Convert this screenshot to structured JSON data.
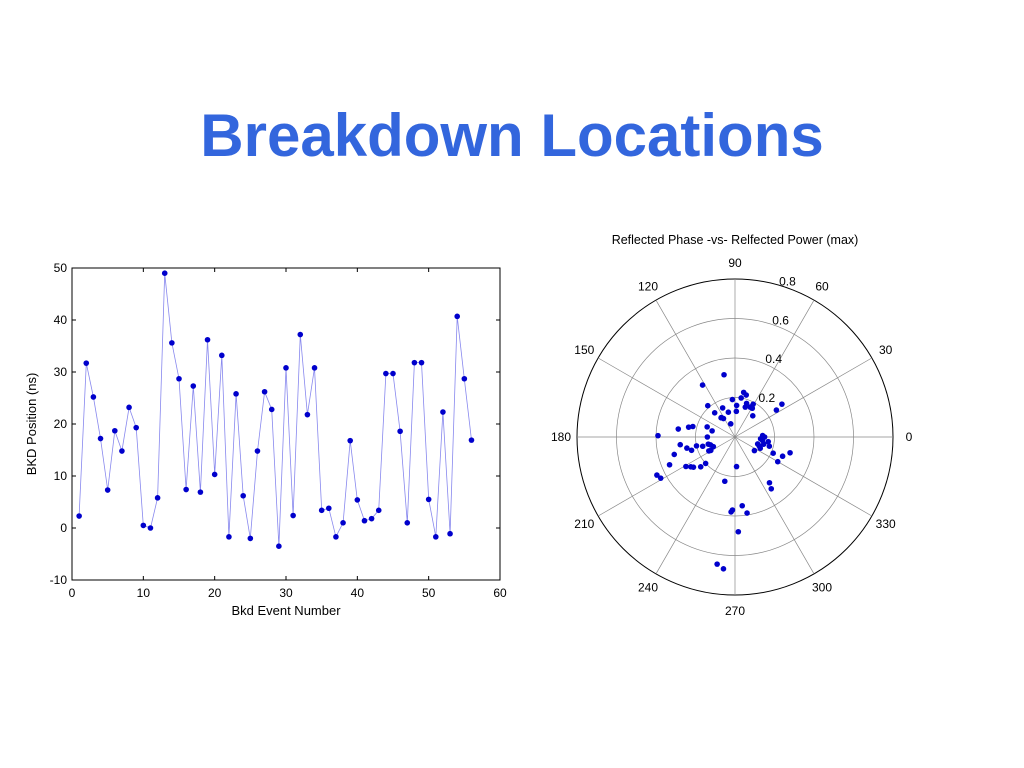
{
  "slide": {
    "title": "Breakdown Locations"
  },
  "colors": {
    "title": "#3366dd",
    "marker": "#0000cc",
    "line": "#8888ee",
    "grid": "#888888"
  },
  "chart_data": [
    {
      "type": "line",
      "title": "",
      "xlabel": "Bkd Event Number",
      "ylabel": "BKD Position (ns)",
      "xlim": [
        0,
        60
      ],
      "ylim": [
        -10,
        50
      ],
      "xticks": [
        0,
        10,
        20,
        30,
        40,
        50,
        60
      ],
      "yticks": [
        -10,
        0,
        10,
        20,
        30,
        40,
        50
      ],
      "grid": false,
      "series": [
        {
          "x": [
            1,
            2,
            3,
            4,
            5,
            6,
            7,
            8,
            9,
            10,
            11,
            12,
            13,
            14,
            15,
            16,
            17,
            18,
            19,
            20,
            21,
            22,
            23,
            24,
            25,
            26,
            27,
            28,
            29,
            30,
            31,
            32,
            33,
            34,
            35,
            36,
            37,
            38,
            39,
            40,
            41,
            42,
            43,
            44,
            45,
            46,
            47,
            48,
            49,
            50,
            51,
            52,
            53,
            54,
            55,
            56
          ],
          "values": [
            2.3,
            31.7,
            25.2,
            17.2,
            7.3,
            18.7,
            14.8,
            23.2,
            19.3,
            0.5,
            0,
            5.8,
            49,
            35.6,
            28.7,
            7.4,
            27.3,
            6.9,
            36.2,
            10.3,
            33.2,
            -1.7,
            25.8,
            6.2,
            -2,
            14.8,
            26.2,
            22.8,
            -3.5,
            30.8,
            2.4,
            37.2,
            21.8,
            30.8,
            3.4,
            3.8,
            -1.7,
            1,
            16.8,
            5.4,
            1.4,
            1.8,
            3.4,
            29.7,
            29.7,
            18.6,
            1,
            31.8,
            31.8,
            5.5,
            -1.7,
            22.3,
            -1.1,
            40.7,
            28.7,
            16.9
          ]
        }
      ]
    },
    {
      "type": "scatter",
      "subtype": "polar",
      "title": "Reflected Phase -vs- Relfected Power (max)",
      "rlim": [
        0,
        0.8
      ],
      "rticks": [
        0.2,
        0.4,
        0.6,
        0.8
      ],
      "angle_ticks_deg": [
        0,
        30,
        60,
        90,
        120,
        150,
        180,
        210,
        240,
        270,
        300,
        330
      ],
      "grid": true,
      "points": [
        {
          "r": 0.23,
          "theta": 79
        },
        {
          "r": 0.32,
          "theta": 100
        },
        {
          "r": 0.31,
          "theta": 122
        },
        {
          "r": 0.11,
          "theta": 122
        },
        {
          "r": 0.25,
          "theta": 33
        },
        {
          "r": 0.29,
          "theta": 35
        },
        {
          "r": 0.13,
          "theta": 105
        },
        {
          "r": 0.19,
          "theta": 94
        },
        {
          "r": 0.2,
          "theta": 81
        },
        {
          "r": 0.16,
          "theta": 71
        },
        {
          "r": 0.19,
          "theta": 61
        },
        {
          "r": 0.14,
          "theta": 50
        },
        {
          "r": 0.17,
          "theta": 59
        },
        {
          "r": 0.18,
          "theta": 71
        },
        {
          "r": 0.13,
          "theta": 87
        },
        {
          "r": 0.07,
          "theta": 108
        },
        {
          "r": 0.22,
          "theta": 75
        },
        {
          "r": 0.17,
          "theta": 63
        },
        {
          "r": 0.21,
          "theta": 131
        },
        {
          "r": 0.16,
          "theta": 130
        },
        {
          "r": 0.12,
          "theta": 125
        },
        {
          "r": 0.16,
          "theta": 113
        },
        {
          "r": 0.12,
          "theta": 126
        },
        {
          "r": 0.16,
          "theta": 87
        },
        {
          "r": 0.39,
          "theta": 179
        },
        {
          "r": 0.29,
          "theta": 172
        },
        {
          "r": 0.24,
          "theta": 168
        },
        {
          "r": 0.22,
          "theta": 166
        },
        {
          "r": 0.14,
          "theta": 180
        },
        {
          "r": 0.15,
          "theta": 160
        },
        {
          "r": 0.12,
          "theta": 165
        },
        {
          "r": 0.28,
          "theta": 188
        },
        {
          "r": 0.25,
          "theta": 193
        },
        {
          "r": 0.23,
          "theta": 197
        },
        {
          "r": 0.2,
          "theta": 193
        },
        {
          "r": 0.17,
          "theta": 196
        },
        {
          "r": 0.15,
          "theta": 208
        },
        {
          "r": 0.14,
          "theta": 195
        },
        {
          "r": 0.23,
          "theta": 221
        },
        {
          "r": 0.27,
          "theta": 214
        },
        {
          "r": 0.29,
          "theta": 211
        },
        {
          "r": 0.26,
          "theta": 216
        },
        {
          "r": 0.2,
          "theta": 222
        },
        {
          "r": 0.14,
          "theta": 209
        },
        {
          "r": 0.13,
          "theta": 198
        },
        {
          "r": 0.12,
          "theta": 204
        },
        {
          "r": 0.43,
          "theta": 209
        },
        {
          "r": 0.44,
          "theta": 206
        },
        {
          "r": 0.15,
          "theta": 273
        },
        {
          "r": 0.23,
          "theta": 257
        },
        {
          "r": 0.35,
          "theta": 276
        },
        {
          "r": 0.39,
          "theta": 279
        },
        {
          "r": 0.37,
          "theta": 268
        },
        {
          "r": 0.38,
          "theta": 267
        },
        {
          "r": 0.48,
          "theta": 272
        },
        {
          "r": 0.67,
          "theta": 265
        },
        {
          "r": 0.65,
          "theta": 262
        },
        {
          "r": 0.25,
          "theta": 330
        },
        {
          "r": 0.29,
          "theta": 307
        },
        {
          "r": 0.32,
          "theta": 305
        },
        {
          "r": 0.14,
          "theta": 336
        },
        {
          "r": 0.17,
          "theta": 352
        },
        {
          "r": 0.18,
          "theta": 345
        },
        {
          "r": 0.13,
          "theta": 340
        },
        {
          "r": 0.12,
          "theta": 325
        },
        {
          "r": 0.21,
          "theta": 337
        },
        {
          "r": 0.26,
          "theta": 338
        },
        {
          "r": 0.29,
          "theta": 344
        },
        {
          "r": 0.15,
          "theta": 346
        },
        {
          "r": 0.14,
          "theta": 353
        },
        {
          "r": 0.15,
          "theta": 0
        },
        {
          "r": 0.14,
          "theta": 3
        },
        {
          "r": 0.13,
          "theta": 356
        },
        {
          "r": 0.12,
          "theta": 343
        },
        {
          "r": 0.32,
          "theta": 196
        },
        {
          "r": 0.36,
          "theta": 203
        }
      ]
    }
  ]
}
